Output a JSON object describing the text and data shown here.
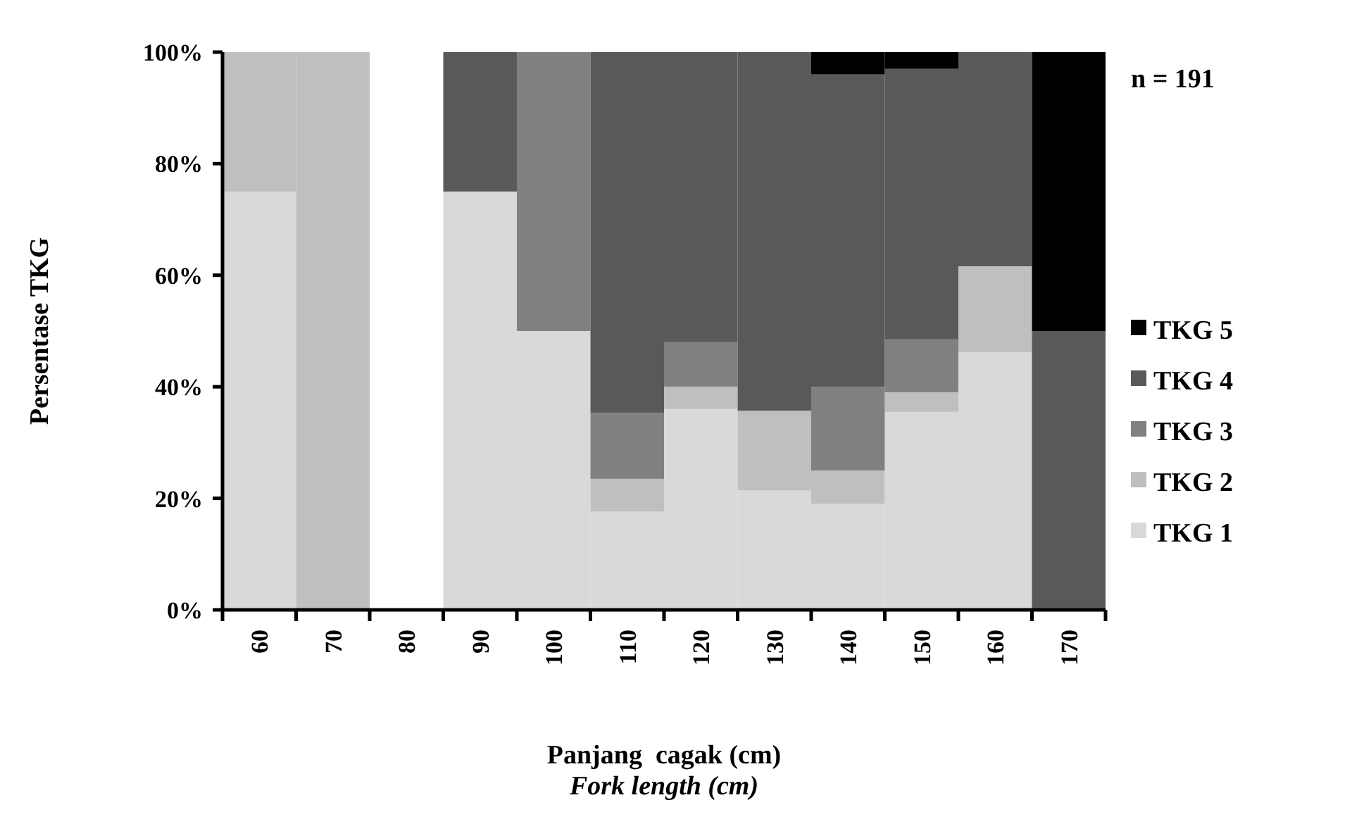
{
  "chart_data": {
    "type": "bar",
    "stacked": true,
    "ylabel": "Persentase TKG",
    "xlabel": "Panjang  cagak (cm)\nFork length (cm)",
    "annotations": [
      "n = 191"
    ],
    "categories": [
      "60",
      "70",
      "80",
      "90",
      "100",
      "110",
      "120",
      "130",
      "140",
      "150",
      "160",
      "170"
    ],
    "ylim": [
      0,
      100
    ],
    "yticks": [
      {
        "value": 0,
        "label": "0%"
      },
      {
        "value": 20,
        "label": "20%"
      },
      {
        "value": 40,
        "label": "40%"
      },
      {
        "value": 60,
        "label": "60%"
      },
      {
        "value": 80,
        "label": "80%"
      },
      {
        "value": 100,
        "label": "100%"
      }
    ],
    "grid": false,
    "legend": "right",
    "series": [
      {
        "name": "TKG 1",
        "color": "#d9d9d9",
        "values": [
          75,
          0,
          0,
          75,
          50,
          17.6,
          36,
          21.4,
          19,
          35.5,
          46.2,
          0
        ]
      },
      {
        "name": "TKG 2",
        "color": "#bfbfbf",
        "values": [
          25,
          100,
          0,
          0,
          0,
          5.9,
          4,
          14.3,
          6,
          3.5,
          15.4,
          0
        ]
      },
      {
        "name": "TKG 3",
        "color": "#808080",
        "values": [
          0,
          0,
          0,
          0,
          50,
          11.8,
          8,
          0,
          15,
          9.5,
          0,
          0
        ]
      },
      {
        "name": "TKG 4",
        "color": "#595959",
        "values": [
          0,
          0,
          0,
          25,
          0,
          64.7,
          52,
          64.3,
          56,
          48.5,
          38.4,
          50
        ]
      },
      {
        "name": "TKG 5",
        "color": "#000000",
        "values": [
          0,
          0,
          0,
          0,
          0,
          0,
          0,
          0,
          4,
          3,
          0,
          50
        ]
      }
    ]
  }
}
